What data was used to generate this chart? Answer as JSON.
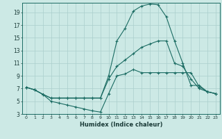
{
  "xlabel": "Humidex (Indice chaleur)",
  "bg_color": "#cce9e5",
  "grid_color": "#aacfcc",
  "line_color": "#1a6b62",
  "xlim": [
    -0.5,
    23.5
  ],
  "ylim": [
    3,
    20.5
  ],
  "xticks": [
    0,
    1,
    2,
    3,
    4,
    5,
    6,
    7,
    8,
    9,
    10,
    11,
    12,
    13,
    14,
    15,
    16,
    17,
    18,
    19,
    20,
    21,
    22,
    23
  ],
  "yticks": [
    3,
    5,
    7,
    9,
    11,
    13,
    15,
    17,
    19
  ],
  "line1_x": [
    0,
    1,
    2,
    3,
    4,
    5,
    6,
    7,
    8,
    9,
    10,
    11,
    12,
    13,
    14,
    15,
    16,
    17,
    18,
    19,
    20,
    21,
    22,
    23
  ],
  "line1_y": [
    7.2,
    6.8,
    6.1,
    5.0,
    4.7,
    4.4,
    4.1,
    3.8,
    3.5,
    3.3,
    6.2,
    9.0,
    9.3,
    10.0,
    9.5,
    9.5,
    9.5,
    9.5,
    9.5,
    9.5,
    9.5,
    7.3,
    6.5,
    6.2
  ],
  "line2_x": [
    0,
    1,
    2,
    3,
    4,
    5,
    6,
    7,
    8,
    9,
    10,
    11,
    12,
    13,
    14,
    15,
    16,
    17,
    18,
    19,
    20,
    21,
    22,
    23
  ],
  "line2_y": [
    7.2,
    6.8,
    6.1,
    5.5,
    5.5,
    5.5,
    5.5,
    5.5,
    5.5,
    5.5,
    9.0,
    14.5,
    16.5,
    19.2,
    20.0,
    20.3,
    20.2,
    18.3,
    14.5,
    11.0,
    7.5,
    7.5,
    6.5,
    6.2
  ],
  "line3_x": [
    0,
    1,
    2,
    3,
    4,
    5,
    6,
    7,
    8,
    9,
    10,
    11,
    12,
    13,
    14,
    15,
    16,
    17,
    18,
    19,
    20,
    21,
    22,
    23
  ],
  "line3_y": [
    7.2,
    6.8,
    6.1,
    5.5,
    5.5,
    5.5,
    5.5,
    5.5,
    5.5,
    5.5,
    8.5,
    10.5,
    11.5,
    12.5,
    13.5,
    14.0,
    14.5,
    14.5,
    11.0,
    10.5,
    8.5,
    7.0,
    6.5,
    6.2
  ]
}
